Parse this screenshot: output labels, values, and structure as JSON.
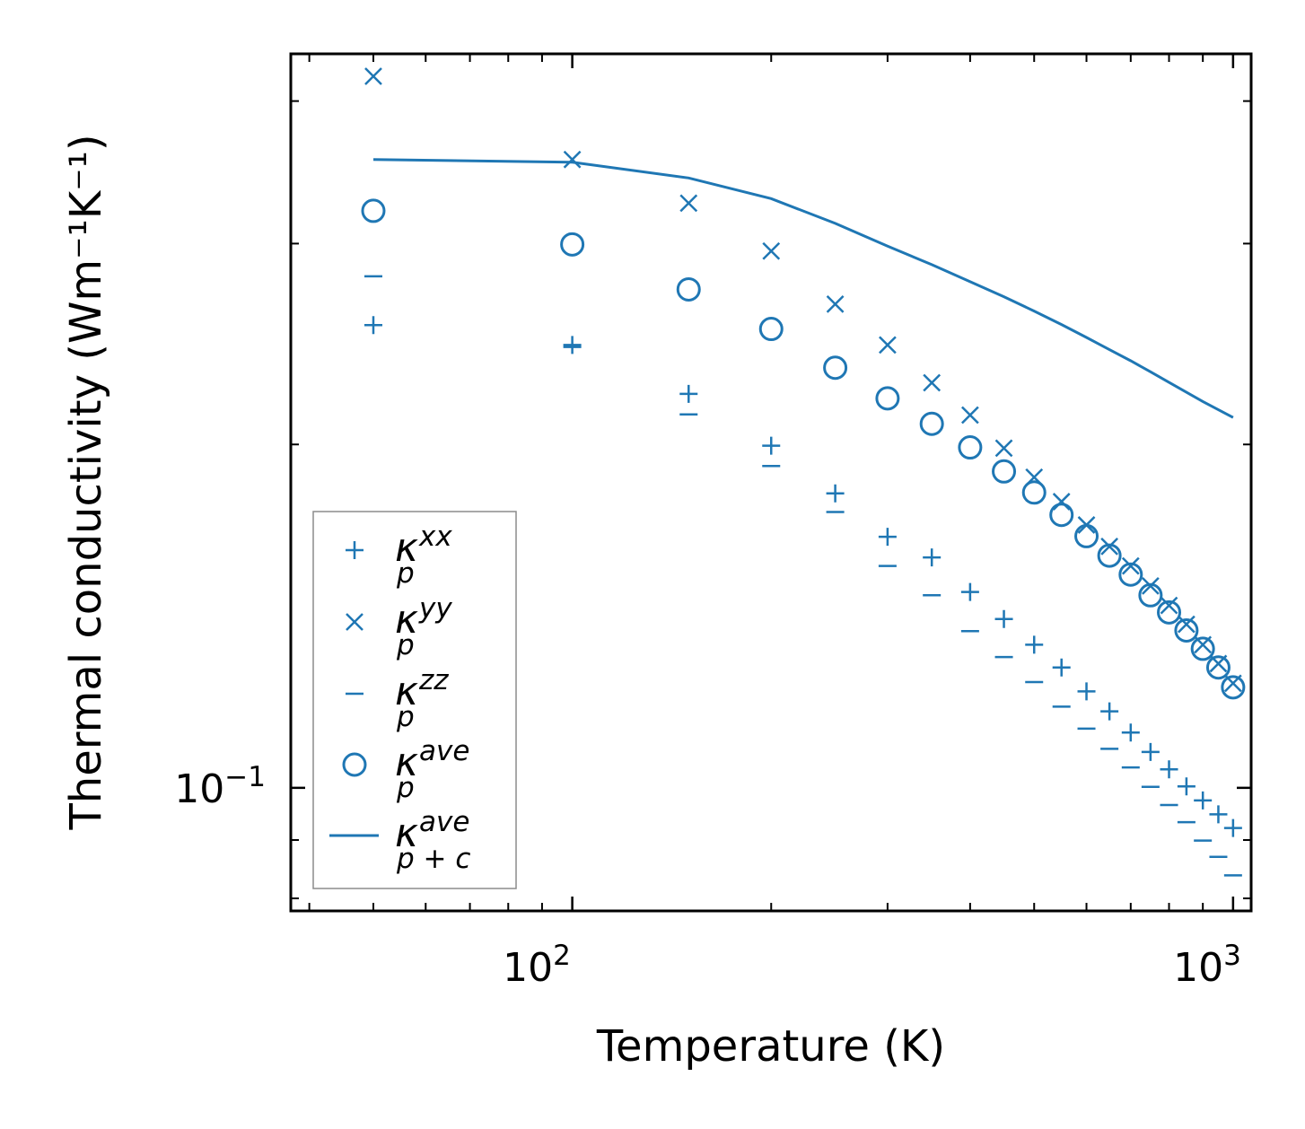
{
  "chart_data": {
    "type": "scatter",
    "xlabel": "Temperature (K)",
    "ylabel": "Thermal conductivity (Wm⁻¹K⁻¹)",
    "xscale": "log",
    "yscale": "log",
    "xlim": [
      37.5,
      1065
    ],
    "ylim": [
      0.078,
      0.44
    ],
    "xtick_labels": [
      {
        "base": "10",
        "exp": "2",
        "value": 100
      },
      {
        "base": "10",
        "exp": "3",
        "value": 1000
      }
    ],
    "ytick_labels": [
      {
        "base": "10",
        "exp": "−1",
        "value": 0.1
      }
    ],
    "legend_location": "lower-left",
    "color": "#1f77b4",
    "x": [
      50,
      100,
      150,
      200,
      250,
      300,
      350,
      400,
      450,
      500,
      550,
      600,
      650,
      700,
      750,
      800,
      850,
      900,
      950,
      1000
    ],
    "series": [
      {
        "name": "kappa_p^xx",
        "symbol": "κ",
        "sub": "p",
        "sup": "xx",
        "marker": "plus",
        "values": [
          0.2545,
          0.2445,
          0.2215,
          0.1995,
          0.1812,
          0.166,
          0.1592,
          0.1485,
          0.1406,
          0.1335,
          0.1275,
          0.1215,
          0.1167,
          0.1118,
          0.1075,
          0.1038,
          0.1003,
          0.0975,
          0.0948,
          0.0922
        ]
      },
      {
        "name": "kappa_p^yy",
        "symbol": "κ",
        "sub": "p",
        "sup": "yy",
        "marker": "x",
        "values": [
          0.4205,
          0.3555,
          0.3255,
          0.2955,
          0.2655,
          0.2445,
          0.2265,
          0.2122,
          0.1985,
          0.1872,
          0.1782,
          0.17,
          0.1628,
          0.1565,
          0.1503,
          0.1445,
          0.1391,
          0.1335,
          0.1285,
          0.1235
        ]
      },
      {
        "name": "kappa_p^zz",
        "symbol": "κ",
        "sub": "p",
        "sup": "zz",
        "marker": "hline",
        "values": [
          0.2808,
          0.2435,
          0.2125,
          0.1915,
          0.1745,
          0.1565,
          0.1475,
          0.1372,
          0.1302,
          0.1238,
          0.1178,
          0.1127,
          0.1082,
          0.1042,
          0.1002,
          0.0966,
          0.0933,
          0.0899,
          0.087,
          0.0838
        ]
      },
      {
        "name": "kappa_p^ave",
        "symbol": "κ",
        "sub": "p",
        "sup": "ave",
        "marker": "circle",
        "values": [
          0.3205,
          0.2995,
          0.2735,
          0.2525,
          0.2335,
          0.2195,
          0.2085,
          0.1988,
          0.1894,
          0.1815,
          0.1735,
          0.1662,
          0.1598,
          0.1538,
          0.1475,
          0.1425,
          0.1374,
          0.1324,
          0.1275,
          0.1225
        ]
      },
      {
        "name": "kappa_p+c^ave",
        "symbol": "κ",
        "sub": "p + c",
        "sup": "ave",
        "marker": "line",
        "values": [
          0.3555,
          0.3535,
          0.3425,
          0.3285,
          0.3125,
          0.2985,
          0.2875,
          0.2778,
          0.2695,
          0.2618,
          0.2548,
          0.2482,
          0.2422,
          0.2368,
          0.2316,
          0.2267,
          0.2222,
          0.2181,
          0.2145,
          0.2112
        ]
      }
    ]
  }
}
